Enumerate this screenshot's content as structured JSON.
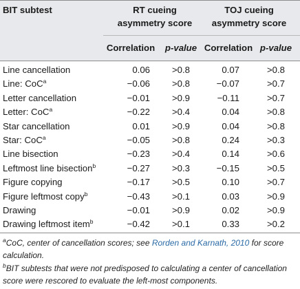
{
  "table": {
    "headers": {
      "subtest": "BIT subtest",
      "rt_line1": "RT cueing",
      "rt_line2": "asymmetry score",
      "toj_line1": "TOJ cueing",
      "toj_line2": "asymmetry score",
      "correlation": "Correlation",
      "pvalue": "p-value"
    },
    "rows": [
      {
        "name": "Line cancellation",
        "sup": "",
        "rt_corr": "0.06",
        "rt_p": ">0.8",
        "toj_corr": "0.07",
        "toj_p": ">0.8"
      },
      {
        "name": "Line: CoC",
        "sup": "a",
        "rt_corr": "−0.06",
        "rt_p": ">0.8",
        "toj_corr": "−0.07",
        "toj_p": ">0.7"
      },
      {
        "name": "Letter cancellation",
        "sup": "",
        "rt_corr": "−0.01",
        "rt_p": ">0.9",
        "toj_corr": "−0.11",
        "toj_p": ">0.7"
      },
      {
        "name": "Letter: CoC",
        "sup": "a",
        "rt_corr": "−0.22",
        "rt_p": ">0.4",
        "toj_corr": "0.04",
        "toj_p": ">0.8"
      },
      {
        "name": "Star cancellation",
        "sup": "",
        "rt_corr": "0.01",
        "rt_p": ">0.9",
        "toj_corr": "0.04",
        "toj_p": ">0.8"
      },
      {
        "name": "Star: CoC",
        "sup": "a",
        "rt_corr": "−0.05",
        "rt_p": ">0.8",
        "toj_corr": "0.24",
        "toj_p": ">0.3"
      },
      {
        "name": "Line bisection",
        "sup": "",
        "rt_corr": "−0.23",
        "rt_p": ">0.4",
        "toj_corr": "0.14",
        "toj_p": ">0.6"
      },
      {
        "name": "Leftmost line bisection",
        "sup": "b",
        "rt_corr": "−0.27",
        "rt_p": ">0.3",
        "toj_corr": "−0.15",
        "toj_p": ">0.5"
      },
      {
        "name": "Figure copying",
        "sup": "",
        "rt_corr": "−0.17",
        "rt_p": ">0.5",
        "toj_corr": "0.10",
        "toj_p": ">0.7"
      },
      {
        "name": "Figure leftmost copy",
        "sup": "b",
        "rt_corr": "−0.43",
        "rt_p": ">0.1",
        "toj_corr": "0.03",
        "toj_p": ">0.9"
      },
      {
        "name": "Drawing",
        "sup": "",
        "rt_corr": "−0.01",
        "rt_p": ">0.9",
        "toj_corr": "0.02",
        "toj_p": ">0.9"
      },
      {
        "name": "Drawing leftmost item",
        "sup": "b",
        "rt_corr": "−0.42",
        "rt_p": ">0.1",
        "toj_corr": "0.33",
        "toj_p": ">0.2"
      }
    ]
  },
  "footnotes": {
    "a": {
      "mark": "a",
      "before": "CoC, center of cancellation scores; see ",
      "link": "Rorden and Karnath, 2010",
      "after": " for score calculation."
    },
    "b": {
      "mark": "b",
      "text": "BIT subtests that were not predisposed to calculating a center of cancellation score were rescored to evaluate the left-most components."
    }
  }
}
